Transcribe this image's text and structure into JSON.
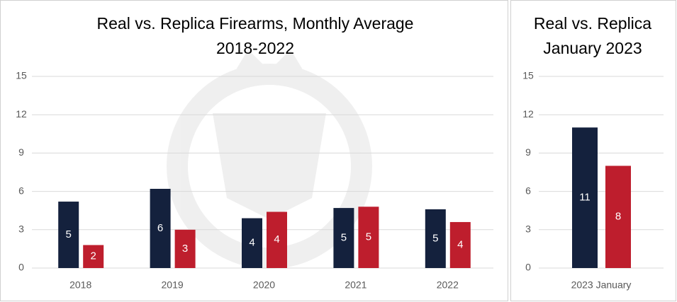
{
  "chart_data": [
    {
      "type": "bar",
      "title": "Real vs. Replica Firearms, Monthly Average",
      "subtitle": "2018-2022",
      "categories": [
        "2018",
        "2019",
        "2020",
        "2021",
        "2022"
      ],
      "series": [
        {
          "color": "#14213d",
          "values": [
            5.2,
            6.2,
            3.9,
            4.7,
            4.6
          ],
          "value_labels": [
            "5",
            "6",
            "4",
            "5",
            "5"
          ]
        },
        {
          "color": "#be1e2d",
          "values": [
            1.8,
            3.0,
            4.4,
            4.8,
            3.6
          ],
          "value_labels": [
            "2",
            "3",
            "4",
            "5",
            "4"
          ]
        }
      ],
      "ylim": [
        0,
        15
      ],
      "yticks": [
        0,
        3,
        6,
        9,
        12,
        15
      ],
      "grid": true
    },
    {
      "type": "bar",
      "title": "Real vs. Replica",
      "subtitle": "January 2023",
      "categories": [
        "2023 January"
      ],
      "series": [
        {
          "color": "#14213d",
          "values": [
            11
          ]
        },
        {
          "color": "#be1e2d",
          "values": [
            8
          ]
        }
      ],
      "ylim": [
        0,
        15
      ],
      "yticks": [
        0,
        3,
        6,
        9,
        12,
        15
      ],
      "grid": true
    }
  ]
}
